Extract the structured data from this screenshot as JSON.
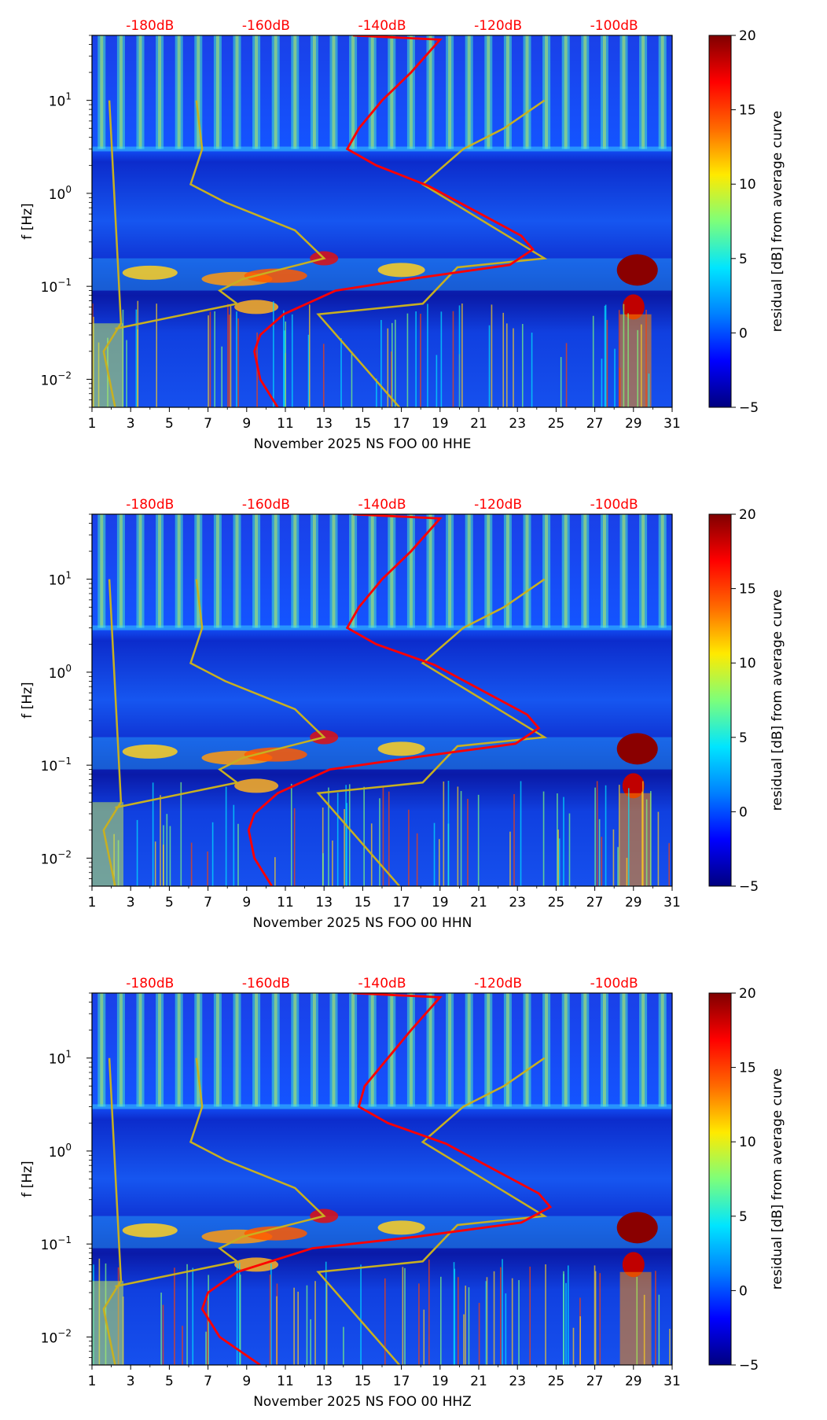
{
  "colors": {
    "background": "#ffffff",
    "psd_curve": "#ff0000",
    "noise_model": "#c8b020",
    "db_labels": "#ff0000",
    "colormap": [
      "#00007f",
      "#0000ff",
      "#0080ff",
      "#00e5ff",
      "#7dff7a",
      "#ffea00",
      "#ff6a00",
      "#ff0000",
      "#7f0000"
    ]
  },
  "chart_data": [
    {
      "type": "heatmap",
      "xlabel": "November 2025 NS FOO 00 HHE",
      "ylabel": "f [Hz]",
      "x_ticks": [
        "1",
        "3",
        "5",
        "7",
        "9",
        "11",
        "13",
        "15",
        "17",
        "19",
        "21",
        "23",
        "25",
        "27",
        "29",
        "31"
      ],
      "xlim": [
        1,
        31
      ],
      "ylim": [
        0.005,
        50
      ],
      "y_scale": "log",
      "y_ticks": [
        {
          "v": 10,
          "m": "10",
          "e": "1"
        },
        {
          "v": 1,
          "m": "10",
          "e": "0"
        },
        {
          "v": 0.1,
          "m": "10",
          "e": "−1"
        },
        {
          "v": 0.01,
          "m": "10",
          "e": "−2"
        }
      ],
      "top_ticks": [
        {
          "v": -180,
          "label": "-180dB"
        },
        {
          "v": -160,
          "label": "-160dB"
        },
        {
          "v": -140,
          "label": "-140dB"
        },
        {
          "v": -120,
          "label": "-120dB"
        },
        {
          "v": -100,
          "label": "-100dB"
        }
      ],
      "colorbar": {
        "label": "residual [dB] from average curve",
        "range": [
          -5,
          20
        ],
        "ticks": [
          "20",
          "15",
          "10",
          "5",
          "0",
          "−5"
        ]
      },
      "psd_curve": [
        [
          -145,
          50
        ],
        [
          -130,
          45
        ],
        [
          -135,
          20
        ],
        [
          -140,
          10
        ],
        [
          -144,
          5
        ],
        [
          -146,
          3
        ],
        [
          -141,
          2
        ],
        [
          -132,
          1.2
        ],
        [
          -123,
          0.6
        ],
        [
          -116,
          0.35
        ],
        [
          -114,
          0.25
        ],
        [
          -118,
          0.17
        ],
        [
          -135,
          0.12
        ],
        [
          -148,
          0.09
        ],
        [
          -157,
          0.05
        ],
        [
          -161,
          0.03
        ],
        [
          -162,
          0.02
        ],
        [
          -161,
          0.01
        ],
        [
          -158,
          0.005
        ]
      ],
      "noise_model": [
        [
          -112,
          10
        ],
        [
          -119,
          5
        ],
        [
          -126,
          3
        ],
        [
          -133,
          1.25
        ],
        [
          -112,
          0.2
        ],
        [
          -127,
          0.16
        ],
        [
          -133,
          0.065
        ],
        [
          -151,
          0.05
        ],
        [
          -137,
          0.005
        ]
      ]
    },
    {
      "type": "heatmap",
      "xlabel": "November 2025 NS FOO 00 HHN",
      "ylabel": "f [Hz]",
      "x_ticks": [
        "1",
        "3",
        "5",
        "7",
        "9",
        "11",
        "13",
        "15",
        "17",
        "19",
        "21",
        "23",
        "25",
        "27",
        "29",
        "31"
      ],
      "xlim": [
        1,
        31
      ],
      "ylim": [
        0.005,
        50
      ],
      "y_scale": "log",
      "y_ticks": [
        {
          "v": 10,
          "m": "10",
          "e": "1"
        },
        {
          "v": 1,
          "m": "10",
          "e": "0"
        },
        {
          "v": 0.1,
          "m": "10",
          "e": "−1"
        },
        {
          "v": 0.01,
          "m": "10",
          "e": "−2"
        }
      ],
      "top_ticks": [
        {
          "v": -180,
          "label": "-180dB"
        },
        {
          "v": -160,
          "label": "-160dB"
        },
        {
          "v": -140,
          "label": "-140dB"
        },
        {
          "v": -120,
          "label": "-120dB"
        },
        {
          "v": -100,
          "label": "-100dB"
        }
      ],
      "colorbar": {
        "label": "residual [dB] from average curve",
        "range": [
          -5,
          20
        ],
        "ticks": [
          "20",
          "15",
          "10",
          "5",
          "0",
          "−5"
        ]
      },
      "psd_curve": [
        [
          -145,
          50
        ],
        [
          -130,
          45
        ],
        [
          -135,
          20
        ],
        [
          -140,
          10
        ],
        [
          -144,
          5
        ],
        [
          -146,
          3
        ],
        [
          -141,
          2
        ],
        [
          -131,
          1.2
        ],
        [
          -122,
          0.6
        ],
        [
          -115,
          0.35
        ],
        [
          -113,
          0.25
        ],
        [
          -117,
          0.17
        ],
        [
          -135,
          0.12
        ],
        [
          -149,
          0.09
        ],
        [
          -158,
          0.05
        ],
        [
          -162,
          0.03
        ],
        [
          -163,
          0.02
        ],
        [
          -162,
          0.01
        ],
        [
          -159,
          0.005
        ]
      ],
      "noise_model": [
        [
          -112,
          10
        ],
        [
          -119,
          5
        ],
        [
          -126,
          3
        ],
        [
          -133,
          1.25
        ],
        [
          -112,
          0.2
        ],
        [
          -127,
          0.16
        ],
        [
          -133,
          0.065
        ],
        [
          -151,
          0.05
        ],
        [
          -137,
          0.005
        ]
      ]
    },
    {
      "type": "heatmap",
      "xlabel": "November 2025 NS FOO 00 HHZ",
      "ylabel": "f [Hz]",
      "x_ticks": [
        "1",
        "3",
        "5",
        "7",
        "9",
        "11",
        "13",
        "15",
        "17",
        "19",
        "21",
        "23",
        "25",
        "27",
        "29",
        "31"
      ],
      "xlim": [
        1,
        31
      ],
      "ylim": [
        0.005,
        50
      ],
      "y_scale": "log",
      "y_ticks": [
        {
          "v": 10,
          "m": "10",
          "e": "1"
        },
        {
          "v": 1,
          "m": "10",
          "e": "0"
        },
        {
          "v": 0.1,
          "m": "10",
          "e": "−1"
        },
        {
          "v": 0.01,
          "m": "10",
          "e": "−2"
        }
      ],
      "top_ticks": [
        {
          "v": -180,
          "label": "-180dB"
        },
        {
          "v": -160,
          "label": "-160dB"
        },
        {
          "v": -140,
          "label": "-140dB"
        },
        {
          "v": -120,
          "label": "-120dB"
        },
        {
          "v": -100,
          "label": "-100dB"
        }
      ],
      "colorbar": {
        "label": "residual [dB] from average curve",
        "range": [
          -5,
          20
        ],
        "ticks": [
          "20",
          "15",
          "10",
          "5",
          "0",
          "−5"
        ]
      },
      "psd_curve": [
        [
          -145,
          50
        ],
        [
          -130,
          45
        ],
        [
          -135,
          20
        ],
        [
          -139,
          10
        ],
        [
          -143,
          5
        ],
        [
          -144,
          3
        ],
        [
          -139,
          2
        ],
        [
          -129,
          1.2
        ],
        [
          -120,
          0.6
        ],
        [
          -113,
          0.35
        ],
        [
          -111,
          0.25
        ],
        [
          -116,
          0.17
        ],
        [
          -134,
          0.12
        ],
        [
          -152,
          0.09
        ],
        [
          -165,
          0.05
        ],
        [
          -170,
          0.03
        ],
        [
          -171,
          0.02
        ],
        [
          -168,
          0.01
        ],
        [
          -161,
          0.005
        ]
      ],
      "noise_model": [
        [
          -112,
          10
        ],
        [
          -119,
          5
        ],
        [
          -126,
          3
        ],
        [
          -133,
          1.25
        ],
        [
          -112,
          0.2
        ],
        [
          -127,
          0.16
        ],
        [
          -133,
          0.065
        ],
        [
          -151,
          0.05
        ],
        [
          -137,
          0.005
        ]
      ]
    }
  ]
}
